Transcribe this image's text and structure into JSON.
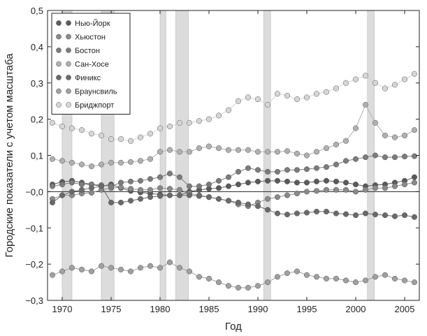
{
  "chart_data": {
    "type": "scatter",
    "xlabel": "Год",
    "ylabel": "Городские показатели с учетом масштаба",
    "xlim": [
      1968.5,
      2006.5
    ],
    "ylim": [
      -0.3,
      0.5
    ],
    "xticks": [
      1970,
      1975,
      1980,
      1985,
      1990,
      1995,
      2000,
      2005
    ],
    "xtick_labels": [
      "1970",
      "1975",
      "1980",
      "1985",
      "1990",
      "1995",
      "2000",
      "2005"
    ],
    "yticks": [
      0.5,
      0.4,
      0.3,
      0.2,
      0.1,
      0.0,
      -0.1,
      -0.2,
      -0.3
    ],
    "ytick_labels": [
      "0,5",
      "0,4",
      "0,3",
      "0,2",
      "0,1",
      "−0,0",
      "−0,1",
      "−0,2",
      "−0,3"
    ],
    "zero_line": true,
    "grid": false,
    "legend_position": "top-left",
    "shaded_periods": [
      [
        1970,
        1971
      ],
      [
        1974,
        1975.3
      ],
      [
        1980,
        1980.6
      ],
      [
        1981.6,
        1982.9
      ],
      [
        1990.6,
        1991.3
      ],
      [
        2001.2,
        2001.9
      ]
    ],
    "x": [
      1969,
      1970,
      1971,
      1972,
      1973,
      1974,
      1975,
      1976,
      1977,
      1978,
      1979,
      1980,
      1981,
      1982,
      1983,
      1984,
      1985,
      1986,
      1987,
      1988,
      1989,
      1990,
      1991,
      1992,
      1993,
      1994,
      1995,
      1996,
      1997,
      1998,
      1999,
      2000,
      2001,
      2002,
      2003,
      2004,
      2005,
      2006
    ],
    "series": [
      {
        "name": "Нью-Йорк",
        "color": "#5a5a5a",
        "values": [
          0.02,
          0.027,
          0.03,
          0.025,
          0.02,
          0.015,
          0.02,
          0.01,
          0.002,
          -0.002,
          -0.005,
          -0.008,
          -0.01,
          -0.01,
          0.0,
          0.005,
          0.008,
          0.01,
          0.015,
          0.02,
          0.025,
          0.028,
          0.03,
          0.03,
          0.028,
          0.025,
          0.025,
          0.028,
          0.03,
          0.028,
          0.025,
          0.02,
          0.015,
          0.018,
          0.02,
          0.025,
          0.03,
          0.04
        ]
      },
      {
        "name": "Хьюстон",
        "color": "#8a8a8a",
        "values": [
          -0.02,
          -0.01,
          -0.01,
          -0.005,
          -0.003,
          0.005,
          0.01,
          0.012,
          0.008,
          0.005,
          0.005,
          0.01,
          0.008,
          0.005,
          -0.005,
          -0.01,
          -0.015,
          -0.02,
          -0.025,
          -0.035,
          -0.04,
          -0.03,
          -0.02,
          -0.015,
          -0.01,
          -0.005,
          0.0,
          0.002,
          0.005,
          0.005,
          0.005,
          0.0,
          0.005,
          0.01,
          0.01,
          0.015,
          0.02,
          0.025
        ]
      },
      {
        "name": "Бостон",
        "color": "#7c7c7c",
        "values": [
          0.015,
          0.02,
          0.025,
          0.02,
          0.02,
          0.018,
          0.015,
          0.025,
          0.028,
          0.03,
          0.035,
          0.04,
          0.05,
          0.04,
          0.015,
          0.015,
          0.02,
          0.03,
          0.04,
          0.055,
          0.065,
          0.06,
          0.055,
          0.055,
          0.06,
          0.06,
          0.062,
          0.065,
          0.068,
          0.075,
          0.085,
          0.09,
          0.095,
          0.1,
          0.095,
          0.095,
          0.097,
          0.098
        ]
      },
      {
        "name": "Сан-Хосе",
        "color": "#b0b0b0",
        "values": [
          0.09,
          0.085,
          0.08,
          0.075,
          0.07,
          0.075,
          0.08,
          0.08,
          0.082,
          0.085,
          0.09,
          0.11,
          0.115,
          0.11,
          0.11,
          0.12,
          0.125,
          0.12,
          0.115,
          0.115,
          0.115,
          0.11,
          0.11,
          0.11,
          0.112,
          0.105,
          0.1,
          0.11,
          0.12,
          0.13,
          0.14,
          0.175,
          0.24,
          0.19,
          0.155,
          0.15,
          0.155,
          0.17
        ]
      },
      {
        "name": "Финикс",
        "color": "#6a6a6a",
        "values": [
          -0.03,
          -0.01,
          0.0,
          0.005,
          0.01,
          0.015,
          -0.03,
          -0.03,
          -0.025,
          -0.02,
          -0.015,
          -0.012,
          -0.01,
          -0.01,
          -0.01,
          -0.012,
          -0.015,
          -0.02,
          -0.025,
          -0.03,
          -0.035,
          -0.04,
          -0.05,
          -0.06,
          -0.063,
          -0.06,
          -0.058,
          -0.055,
          -0.055,
          -0.06,
          -0.062,
          -0.065,
          -0.06,
          -0.063,
          -0.065,
          -0.068,
          -0.065,
          -0.07
        ]
      },
      {
        "name": "Браунсвиль",
        "color": "#a0a0a0",
        "values": [
          -0.23,
          -0.22,
          -0.21,
          -0.215,
          -0.22,
          -0.205,
          -0.21,
          -0.215,
          -0.22,
          -0.21,
          -0.205,
          -0.21,
          -0.195,
          -0.21,
          -0.22,
          -0.235,
          -0.24,
          -0.25,
          -0.26,
          -0.265,
          -0.265,
          -0.26,
          -0.25,
          -0.235,
          -0.225,
          -0.22,
          -0.23,
          -0.235,
          -0.24,
          -0.24,
          -0.245,
          -0.25,
          -0.245,
          -0.235,
          -0.23,
          -0.24,
          -0.245,
          -0.25
        ]
      },
      {
        "name": "Бриджпорт",
        "color": "#d6d6d6",
        "values": [
          0.19,
          0.18,
          0.175,
          0.17,
          0.16,
          0.155,
          0.145,
          0.145,
          0.14,
          0.15,
          0.16,
          0.175,
          0.18,
          0.19,
          0.19,
          0.195,
          0.2,
          0.21,
          0.225,
          0.25,
          0.26,
          0.255,
          0.24,
          0.27,
          0.265,
          0.255,
          0.26,
          0.27,
          0.275,
          0.285,
          0.3,
          0.31,
          0.32,
          0.3,
          0.285,
          0.295,
          0.31,
          0.325
        ]
      }
    ]
  }
}
